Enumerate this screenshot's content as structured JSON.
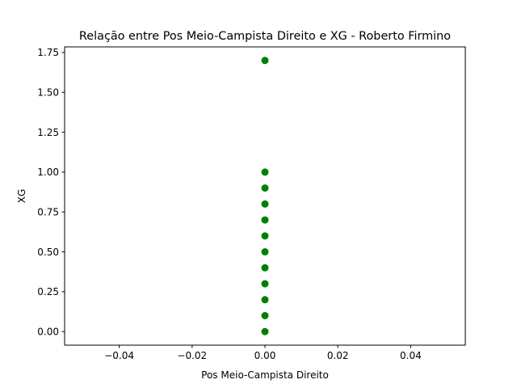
{
  "chart_data": {
    "type": "scatter",
    "title": "Relação entre Pos Meio-Campista Direito e XG - Roberto Firmino",
    "xlabel": "Pos Meio-Campista Direito",
    "ylabel": "XG",
    "xlim": [
      -0.055,
      0.055
    ],
    "ylim": [
      -0.085,
      1.785
    ],
    "xticks": [
      -0.04,
      -0.02,
      0.0,
      0.02,
      0.04
    ],
    "xtick_labels": [
      "−0.04",
      "−0.02",
      "0.00",
      "0.02",
      "0.04"
    ],
    "yticks": [
      0.0,
      0.25,
      0.5,
      0.75,
      1.0,
      1.25,
      1.5,
      1.75
    ],
    "ytick_labels": [
      "0.00",
      "0.25",
      "0.50",
      "0.75",
      "1.00",
      "1.25",
      "1.50",
      "1.75"
    ],
    "grid": false,
    "marker_color": "#008000",
    "points": [
      {
        "x": 0,
        "y": 0.0
      },
      {
        "x": 0,
        "y": 0.1
      },
      {
        "x": 0,
        "y": 0.2
      },
      {
        "x": 0,
        "y": 0.3
      },
      {
        "x": 0,
        "y": 0.4
      },
      {
        "x": 0,
        "y": 0.5
      },
      {
        "x": 0,
        "y": 0.6
      },
      {
        "x": 0,
        "y": 0.7
      },
      {
        "x": 0,
        "y": 0.8
      },
      {
        "x": 0,
        "y": 0.9
      },
      {
        "x": 0,
        "y": 1.0
      },
      {
        "x": 0,
        "y": 1.7
      }
    ]
  }
}
